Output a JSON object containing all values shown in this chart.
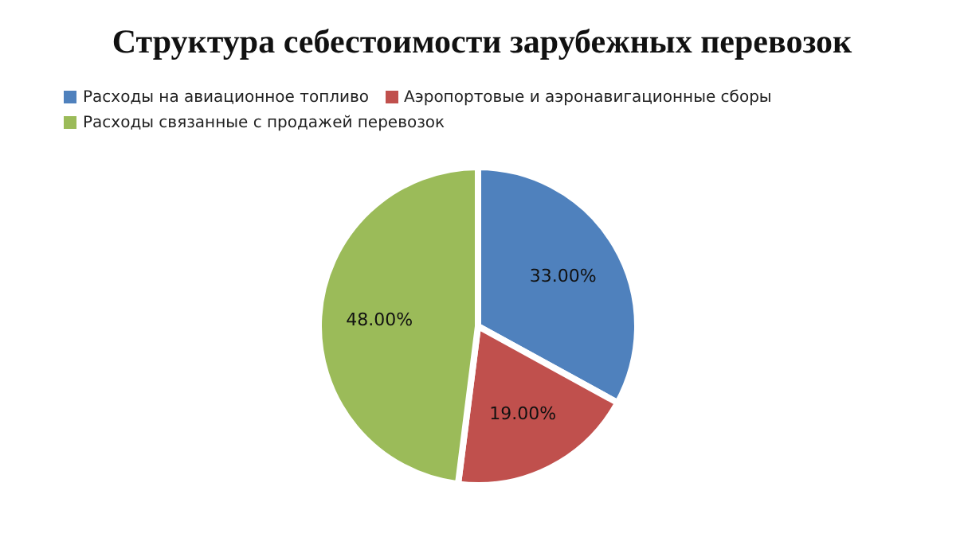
{
  "chart_data": {
    "type": "pie",
    "title": "Структура себестоимости зарубежных перевозок",
    "categories": [
      "Расходы на авиационное топливо",
      "Аэропортовые и аэронавигационные сборы",
      "Расходы связанные с продажей перевозок"
    ],
    "values": [
      33,
      19,
      48
    ],
    "colors": [
      "#4f81bd",
      "#c0504d",
      "#9bbb59"
    ],
    "value_labels": [
      "33.00%",
      "19.00%",
      "48.00%"
    ],
    "legend": "top"
  }
}
